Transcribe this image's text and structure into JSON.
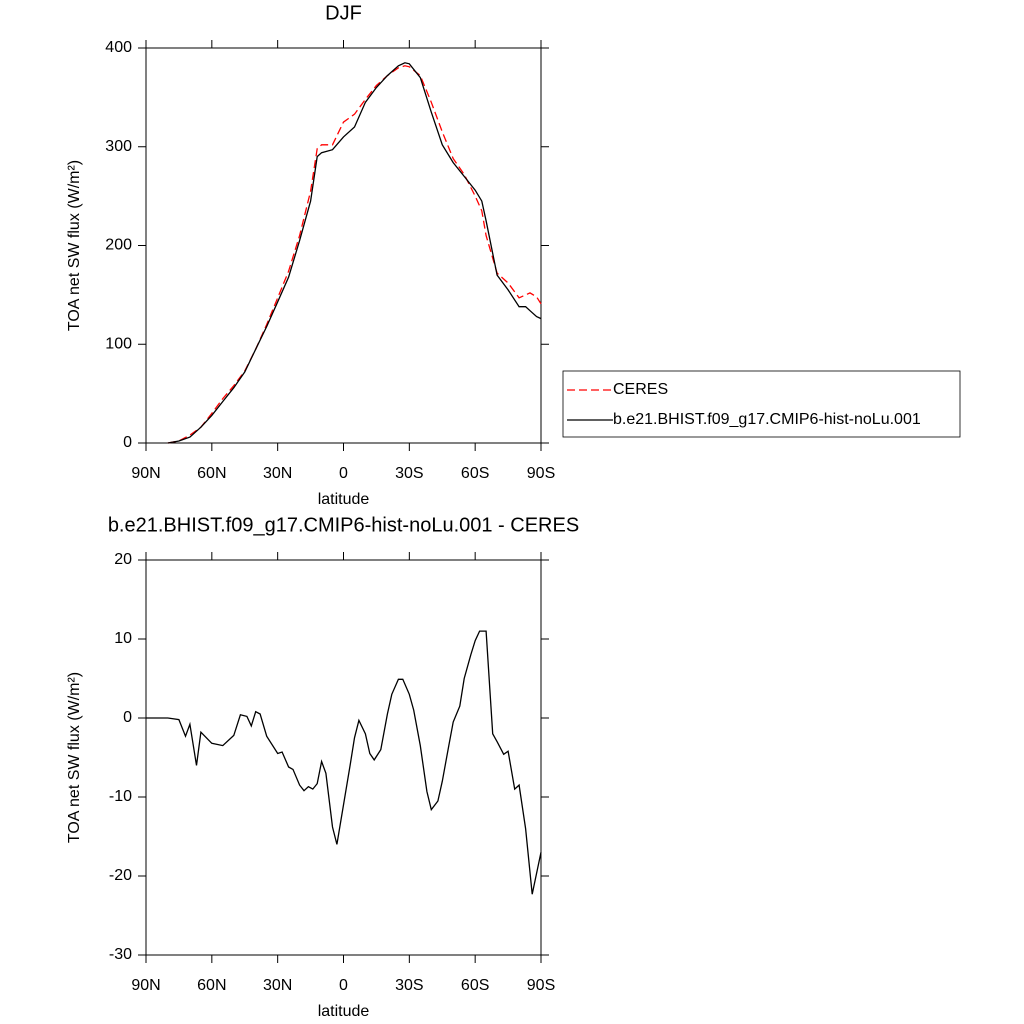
{
  "chart_data": [
    {
      "type": "line",
      "title": "DJF",
      "xlabel": "latitude",
      "ylabel": "TOA net SW flux (W/m²)",
      "xlim": [
        90,
        -90
      ],
      "xticks": [
        {
          "value": 90,
          "label": "90N"
        },
        {
          "value": 60,
          "label": "60N"
        },
        {
          "value": 30,
          "label": "30N"
        },
        0,
        {
          "value": -30,
          "label": "30S"
        },
        {
          "value": -60,
          "label": "60S"
        },
        {
          "value": -90,
          "label": "90S"
        }
      ],
      "ylim": [
        0,
        400
      ],
      "yticks": [
        0,
        100,
        200,
        300,
        400
      ],
      "legend": "right",
      "x": [
        80,
        75,
        70,
        65,
        60,
        55,
        50,
        45,
        40,
        35,
        30,
        25,
        20,
        15,
        12,
        10,
        5,
        0,
        -5,
        -10,
        -15,
        -20,
        -25,
        -28,
        -30,
        -35,
        -40,
        -45,
        -50,
        -55,
        -60,
        -63,
        -65,
        -70,
        -75,
        -80,
        -83,
        -85,
        -88,
        -90
      ],
      "series": [
        {
          "name": "CERES",
          "color": "#ff0000",
          "dash": true,
          "values": [
            0,
            2,
            8,
            16,
            30,
            45,
            58,
            73,
            95,
            120,
            147,
            174,
            210,
            255,
            298,
            302,
            302,
            325,
            333,
            348,
            362,
            372,
            380,
            382,
            381,
            372,
            345,
            315,
            288,
            272,
            250,
            235,
            210,
            172,
            162,
            147,
            150,
            152,
            148,
            141
          ]
        },
        {
          "name": "b.e21.BHIST.f09_g17.CMIP6-hist-noLu.001",
          "color": "#000000",
          "dash": false,
          "values": [
            0,
            2,
            6,
            16,
            28,
            42,
            56,
            72,
            95,
            118,
            143,
            168,
            205,
            245,
            290,
            294,
            297,
            310,
            320,
            345,
            360,
            372,
            382,
            385,
            384,
            370,
            335,
            302,
            284,
            270,
            256,
            245,
            225,
            170,
            155,
            138,
            138,
            134,
            128,
            126
          ]
        }
      ]
    },
    {
      "type": "line",
      "title": "b.e21.BHIST.f09_g17.CMIP6-hist-noLu.001 - CERES",
      "xlabel": "latitude",
      "ylabel": "TOA net SW flux (W/m²)",
      "xlim": [
        90,
        -90
      ],
      "xticks": [
        {
          "value": 90,
          "label": "90N"
        },
        {
          "value": 60,
          "label": "60N"
        },
        {
          "value": 30,
          "label": "30N"
        },
        0,
        {
          "value": -30,
          "label": "30S"
        },
        {
          "value": -60,
          "label": "60S"
        },
        {
          "value": -90,
          "label": "90S"
        }
      ],
      "ylim": [
        -30,
        20
      ],
      "yticks": [
        -30,
        -20,
        -10,
        0,
        10,
        20
      ],
      "x": [
        90,
        80,
        75,
        72,
        70,
        67,
        65,
        60,
        55,
        50,
        47,
        44,
        42,
        40,
        38,
        35,
        30,
        28,
        25,
        23,
        20,
        18,
        16,
        14,
        12,
        10,
        8,
        5,
        3,
        0,
        -3,
        -5,
        -7,
        -10,
        -12,
        -14,
        -17,
        -20,
        -22,
        -25,
        -27,
        -30,
        -32,
        -35,
        -38,
        -40,
        -43,
        -45,
        -48,
        -50,
        -53,
        -55,
        -58,
        -60,
        -62,
        -65,
        -68,
        -70,
        -73,
        -75,
        -78,
        -80,
        -83,
        -86,
        -90
      ],
      "series": [
        {
          "color": "#000000",
          "dash": false,
          "values": [
            0,
            0,
            -0.2,
            -2.3,
            -0.8,
            -6,
            -1.8,
            -3.2,
            -3.5,
            -2.2,
            0.4,
            0.2,
            -1,
            0.8,
            0.5,
            -2.3,
            -4.5,
            -4.3,
            -6.2,
            -6.5,
            -8.5,
            -9.2,
            -8.7,
            -9,
            -8.3,
            -5.5,
            -7,
            -13.8,
            -16,
            -11,
            -6,
            -2.5,
            -0.3,
            -2,
            -4.5,
            -5.3,
            -4,
            0.5,
            3,
            4.9,
            4.9,
            3,
            1,
            -3.5,
            -9.3,
            -11.6,
            -10.5,
            -8,
            -3.5,
            -0.5,
            1.5,
            5,
            8,
            9.8,
            11,
            11,
            -2,
            -3,
            -4.6,
            -4.2,
            -9,
            -8.5,
            -14,
            -22.3,
            -17
          ]
        }
      ]
    }
  ]
}
